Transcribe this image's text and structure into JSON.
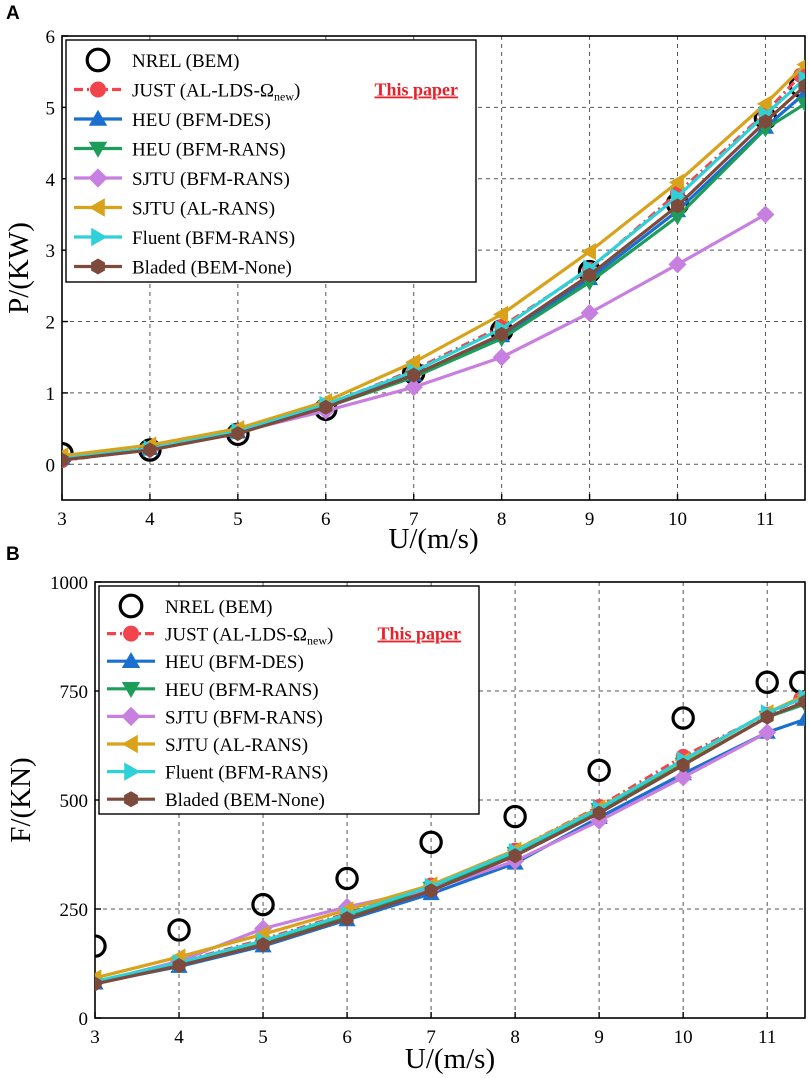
{
  "chart_data": [
    {
      "type": "line",
      "panel": "A",
      "xlabel": "U/(m/s)",
      "ylabel": "P/(KW)",
      "xlim": [
        3,
        11.45
      ],
      "ylim": [
        -0.5,
        6
      ],
      "xticks": [
        "3",
        "4",
        "5",
        "6",
        "7",
        "8",
        "9",
        "10",
        "11"
      ],
      "yticks": [
        "0",
        "1",
        "2",
        "3",
        "4",
        "5",
        "6"
      ],
      "grid": true,
      "legend_position": "top-left",
      "annotation": "This paper",
      "series": [
        {
          "name_main": "NREL (BEM)",
          "color": "#000000",
          "marker": "open-circle",
          "line": false,
          "x": [
            3,
            4,
            5,
            6,
            7,
            8,
            9,
            10,
            11,
            11.4
          ],
          "y": [
            0.15,
            0.2,
            0.42,
            0.77,
            1.28,
            1.87,
            2.7,
            3.65,
            4.85,
            5.3
          ]
        },
        {
          "name_main": "JUST (AL-LDS-Ω",
          "name_sub": "new",
          "name_close": ")",
          "color": "#f2444c",
          "marker": "circle",
          "line": true,
          "dash": true,
          "x": [
            3,
            4,
            5,
            6,
            7,
            8,
            9,
            10,
            11,
            11.4
          ],
          "y": [
            0.05,
            0.22,
            0.47,
            0.83,
            1.32,
            1.93,
            2.73,
            3.8,
            4.92,
            5.45
          ]
        },
        {
          "name_main": "HEU (BFM-DES)",
          "color": "#1a6fcf",
          "marker": "triangle-up",
          "line": true,
          "x": [
            3,
            4,
            5,
            6,
            7,
            8,
            9,
            10,
            11,
            11.45
          ],
          "y": [
            0.08,
            0.22,
            0.45,
            0.83,
            1.25,
            1.8,
            2.6,
            3.55,
            4.72,
            5.2
          ]
        },
        {
          "name_main": "HEU (BFM-RANS)",
          "color": "#1c9e5a",
          "marker": "triangle-down",
          "line": true,
          "x": [
            3,
            4,
            5,
            6,
            7,
            8,
            9,
            10,
            11,
            11.45
          ],
          "y": [
            0.07,
            0.21,
            0.44,
            0.8,
            1.22,
            1.76,
            2.55,
            3.47,
            4.7,
            5.05
          ]
        },
        {
          "name_main": "SJTU (BFM-RANS)",
          "color": "#c77fe0",
          "marker": "diamond",
          "line": true,
          "x": [
            3,
            4,
            5,
            6,
            7,
            8,
            9,
            10,
            11
          ],
          "y": [
            0.07,
            0.2,
            0.45,
            0.75,
            1.08,
            1.5,
            2.12,
            2.8,
            3.5
          ]
        },
        {
          "name_main": "SJTU (AL-RANS)",
          "color": "#d8a31a",
          "marker": "triangle-left",
          "line": true,
          "x": [
            3,
            4,
            5,
            6,
            7,
            8,
            9,
            10,
            11,
            11.45
          ],
          "y": [
            0.12,
            0.27,
            0.5,
            0.88,
            1.43,
            2.1,
            2.98,
            3.95,
            5.05,
            5.6
          ]
        },
        {
          "name_main": "Fluent (BFM-RANS)",
          "color": "#2ed1d8",
          "marker": "triangle-right",
          "line": true,
          "x": [
            3,
            4,
            5,
            6,
            7,
            8,
            9,
            10,
            11,
            11.45
          ],
          "y": [
            0.08,
            0.22,
            0.46,
            0.84,
            1.3,
            1.9,
            2.75,
            3.75,
            4.9,
            5.4
          ]
        },
        {
          "name_main": "Bladed (BEM-None)",
          "color": "#7d4a3c",
          "marker": "hexagon",
          "line": true,
          "x": [
            3,
            4,
            5,
            6,
            7,
            8,
            9,
            10,
            11,
            11.45
          ],
          "y": [
            0.06,
            0.2,
            0.43,
            0.8,
            1.25,
            1.82,
            2.65,
            3.62,
            4.8,
            5.3
          ]
        }
      ]
    },
    {
      "type": "line",
      "panel": "B",
      "xlabel": "U/(m/s)",
      "ylabel": "F/(KN)",
      "xlim": [
        3,
        11.45
      ],
      "ylim": [
        0,
        1000
      ],
      "xticks": [
        "3",
        "4",
        "5",
        "6",
        "7",
        "8",
        "9",
        "10",
        "11"
      ],
      "yticks": [
        "0",
        "250",
        "500",
        "750",
        "1000"
      ],
      "grid": true,
      "legend_position": "top-left",
      "annotation": "This paper",
      "series": [
        {
          "name_main": "NREL (BEM)",
          "color": "#000000",
          "marker": "open-circle",
          "line": false,
          "x": [
            3,
            4,
            5,
            6,
            7,
            8,
            9,
            10,
            11,
            11.4
          ],
          "y": [
            165,
            202,
            260,
            320,
            403,
            462,
            568,
            688,
            770,
            770
          ]
        },
        {
          "name_main": "JUST (AL-LDS-Ω",
          "name_sub": "new",
          "name_close": ")",
          "color": "#f2444c",
          "marker": "circle",
          "line": true,
          "dash": true,
          "x": [
            3,
            4,
            5,
            6,
            7,
            8,
            9,
            10,
            11,
            11.4
          ],
          "y": [
            82,
            128,
            180,
            240,
            305,
            385,
            485,
            600,
            697,
            732
          ]
        },
        {
          "name_main": "HEU (BFM-DES)",
          "color": "#1a6fcf",
          "marker": "triangle-up",
          "line": true,
          "x": [
            3,
            4,
            5,
            6,
            7,
            8,
            9,
            10,
            11,
            11.45
          ],
          "y": [
            80,
            118,
            165,
            225,
            285,
            355,
            460,
            560,
            655,
            685
          ]
        },
        {
          "name_main": "HEU (BFM-RANS)",
          "color": "#1c9e5a",
          "marker": "triangle-down",
          "line": true,
          "x": [
            3,
            4,
            5,
            6,
            7,
            8,
            9,
            10,
            11,
            11.45
          ],
          "y": [
            82,
            125,
            172,
            235,
            298,
            378,
            478,
            582,
            690,
            720
          ]
        },
        {
          "name_main": "SJTU (BFM-RANS)",
          "color": "#c77fe0",
          "marker": "diamond",
          "line": true,
          "x": [
            3,
            4,
            5,
            6,
            7,
            8,
            9,
            10,
            11
          ],
          "y": [
            82,
            130,
            205,
            255,
            295,
            360,
            452,
            552,
            655
          ]
        },
        {
          "name_main": "SJTU (AL-RANS)",
          "color": "#d8a31a",
          "marker": "triangle-left",
          "line": true,
          "x": [
            3,
            4,
            5,
            6,
            7,
            8,
            9,
            10,
            11,
            11.45
          ],
          "y": [
            92,
            140,
            192,
            248,
            305,
            385,
            482,
            590,
            700,
            740
          ]
        },
        {
          "name_main": "Fluent (BFM-RANS)",
          "color": "#2ed1d8",
          "marker": "triangle-right",
          "line": true,
          "x": [
            3,
            4,
            5,
            6,
            7,
            8,
            9,
            10,
            11,
            11.45
          ],
          "y": [
            84,
            127,
            177,
            238,
            302,
            382,
            480,
            592,
            700,
            735
          ]
        },
        {
          "name_main": "Bladed (BEM-None)",
          "color": "#7d4a3c",
          "marker": "hexagon",
          "line": true,
          "x": [
            3,
            4,
            5,
            6,
            7,
            8,
            9,
            10,
            11,
            11.45
          ],
          "y": [
            78,
            120,
            168,
            228,
            292,
            372,
            470,
            580,
            690,
            725
          ]
        }
      ]
    }
  ]
}
